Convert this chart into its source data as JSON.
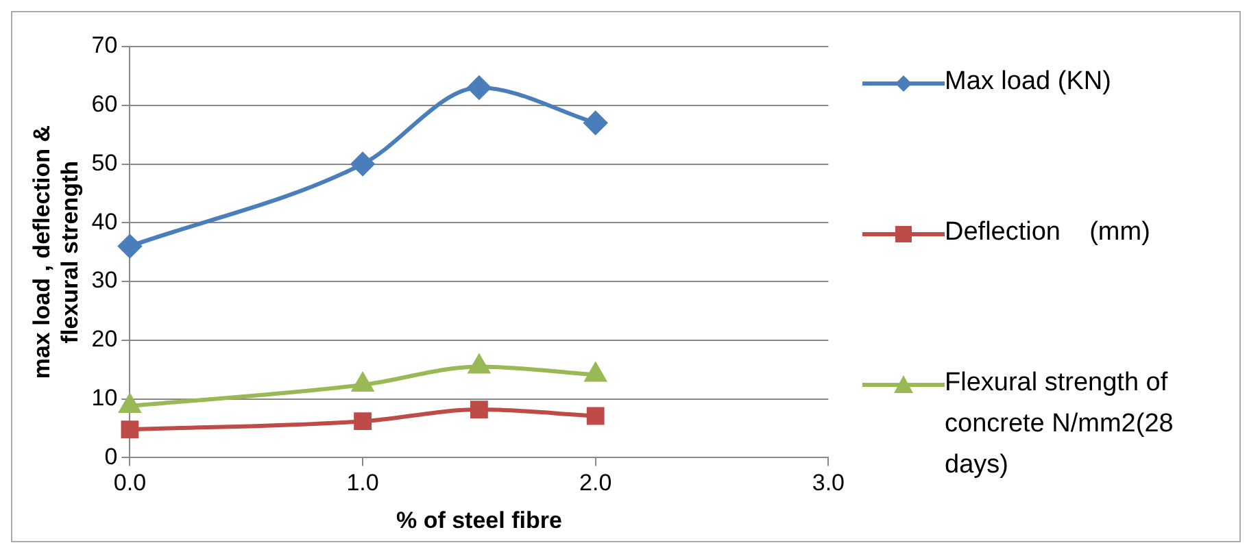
{
  "chart_data": {
    "type": "line",
    "xlabel": "% of steel fibre",
    "ylabel": "max load , deflection &\nflexural strength",
    "x": [
      0,
      1,
      1.5,
      2
    ],
    "series": [
      {
        "name": "Max load (KN)",
        "color": "#4a7ebb",
        "marker": "diamond",
        "values": [
          36,
          50,
          63,
          57
        ]
      },
      {
        "name": "Deflection    (mm)",
        "color": "#be4b48",
        "marker": "square",
        "values": [
          4.8,
          6.2,
          8.2,
          7.1
        ]
      },
      {
        "name": "Flexural strength of concrete N/mm2(28 days)",
        "color": "#98b954",
        "marker": "triangle",
        "values": [
          8.8,
          12.4,
          15.5,
          14.1
        ]
      }
    ],
    "xlim": [
      0,
      3
    ],
    "xticks": [
      {
        "value": 0,
        "label": "0.0"
      },
      {
        "value": 1,
        "label": "1.0"
      },
      {
        "value": 2,
        "label": "2.0"
      },
      {
        "value": 3,
        "label": "3.0"
      }
    ],
    "ylim": [
      0,
      70
    ],
    "yticks": [
      0,
      10,
      20,
      30,
      40,
      50,
      60,
      70
    ],
    "grid": "y",
    "legend": "right",
    "line_style": "solid"
  }
}
